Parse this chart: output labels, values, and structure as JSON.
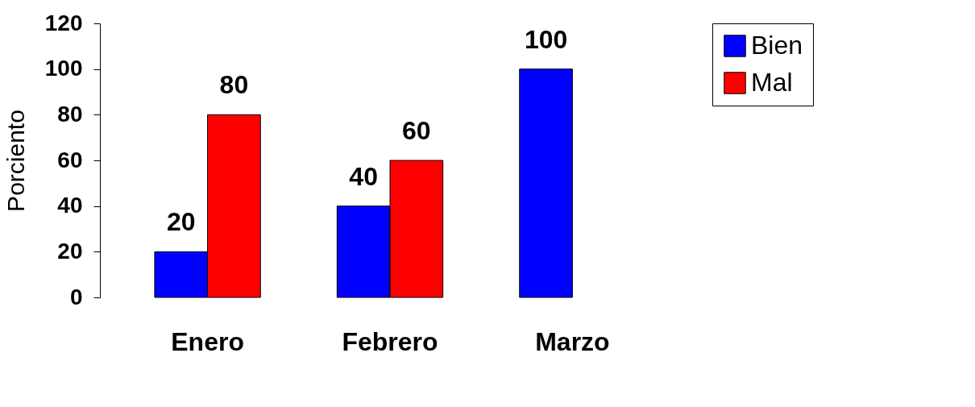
{
  "chart_data": {
    "type": "bar",
    "ylabel": "Porciento",
    "categories": [
      "Enero",
      "Febrero",
      "Marzo"
    ],
    "series": [
      {
        "name": "Bien",
        "color": "#0000ff",
        "values": [
          20,
          40,
          100
        ]
      },
      {
        "name": "Mal",
        "color": "#ff0000",
        "values": [
          80,
          60,
          null
        ]
      }
    ],
    "ylim": [
      0,
      120
    ],
    "yticks": [
      0,
      20,
      40,
      60,
      80,
      100,
      120
    ],
    "grid": false,
    "legend": "right",
    "data_labels": true
  }
}
